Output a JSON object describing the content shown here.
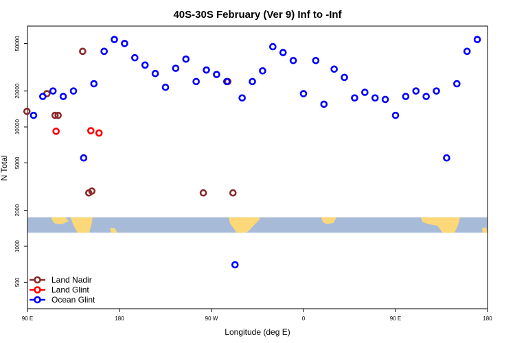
{
  "chart_data": {
    "type": "scatter",
    "title": "40S-30S February (Ver 9)   Inf to -Inf",
    "xlabel": "Longitude (deg E)",
    "ylabel": "N Total",
    "y_scale": "log",
    "ylim": [
      300,
      70000
    ],
    "x_ticks": [
      {
        "value": 90,
        "label": "90 E"
      },
      {
        "value": 180,
        "label": "180"
      },
      {
        "value": 270,
        "label": "90 W"
      },
      {
        "value": 360,
        "label": "0"
      },
      {
        "value": 450,
        "label": "90 E"
      },
      {
        "value": 540,
        "label": "180"
      }
    ],
    "xlim": [
      90,
      540
    ],
    "y_ticks": [
      500,
      1000,
      2000,
      5000,
      10000,
      20000,
      50000
    ],
    "legend_position": "bottom-left",
    "map_strip": {
      "y_top": 1750,
      "y_bottom": 1300,
      "ocean_color": "#a7bbd9",
      "land_color": "#fdd878"
    },
    "series": [
      {
        "name": "Land Nadir",
        "color": "#8b2a2a",
        "points": [
          [
            117,
            12500
          ],
          [
            144,
            43000
          ],
          [
            150,
            2800
          ],
          [
            120,
            12500
          ],
          [
            109,
            19000
          ],
          [
            89.5,
            13500
          ],
          [
            153,
            2900
          ],
          [
            286,
            24000
          ],
          [
            291,
            2800
          ],
          [
            262,
            2800
          ]
        ]
      },
      {
        "name": "Land Glint",
        "color": "#ff0000",
        "points": [
          [
            118,
            9200
          ],
          [
            152,
            9300
          ],
          [
            160,
            8900
          ]
        ]
      },
      {
        "name": "Ocean Glint",
        "color": "#0000ff",
        "points": [
          [
            96,
            12500
          ],
          [
            105,
            18000
          ],
          [
            115,
            20000
          ],
          [
            125,
            18000
          ],
          [
            135,
            20000
          ],
          [
            145,
            5500
          ],
          [
            155,
            23000
          ],
          [
            165,
            43000
          ],
          [
            175,
            54000
          ],
          [
            185,
            50000
          ],
          [
            195,
            38000
          ],
          [
            205,
            33000
          ],
          [
            215,
            28000
          ],
          [
            225,
            21500
          ],
          [
            235,
            31000
          ],
          [
            245,
            37000
          ],
          [
            255,
            24000
          ],
          [
            265,
            30000
          ],
          [
            275,
            27500
          ],
          [
            285,
            24000
          ],
          [
            293,
            700
          ],
          [
            300,
            17500
          ],
          [
            310,
            24000
          ],
          [
            320,
            29500
          ],
          [
            330,
            47000
          ],
          [
            340,
            42000
          ],
          [
            350,
            36000
          ],
          [
            360,
            19000
          ],
          [
            372,
            36000
          ],
          [
            380,
            15500
          ],
          [
            390,
            30500
          ],
          [
            400,
            26000
          ],
          [
            410,
            17500
          ],
          [
            420,
            19500
          ],
          [
            430,
            17500
          ],
          [
            440,
            17000
          ],
          [
            450,
            12500
          ],
          [
            460,
            18000
          ],
          [
            470,
            20000
          ],
          [
            480,
            18000
          ],
          [
            490,
            20000
          ],
          [
            500,
            5500
          ],
          [
            510,
            23000
          ],
          [
            520,
            43000
          ],
          [
            530,
            54000
          ]
        ]
      }
    ]
  }
}
